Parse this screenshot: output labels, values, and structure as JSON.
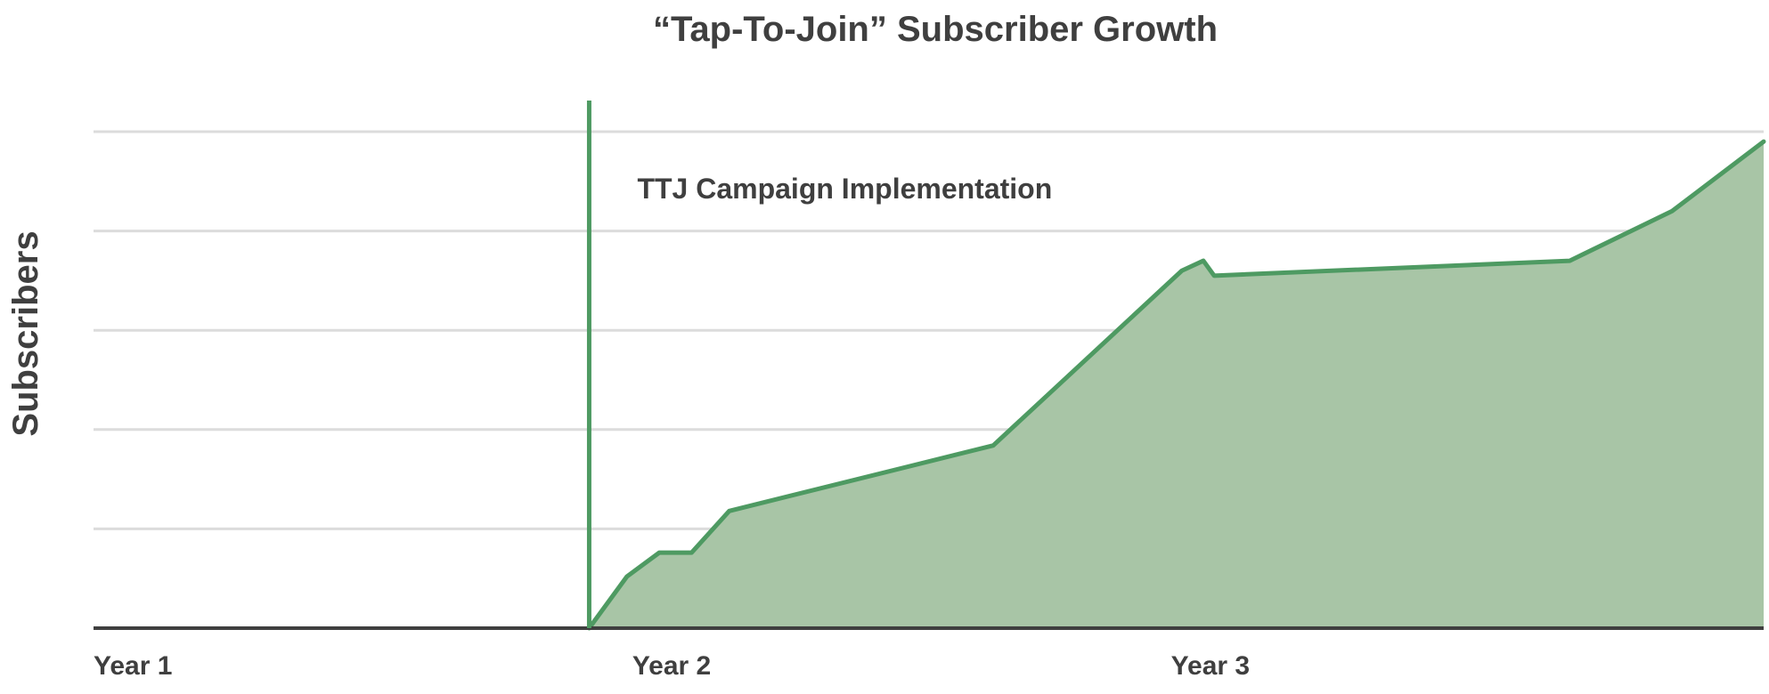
{
  "chart_data": {
    "type": "area",
    "title": "“Tap-To-Join” Subscriber Growth",
    "xlabel": "",
    "ylabel": "Subscribers",
    "x_tick_labels": [
      {
        "label": "Year 1",
        "x": 1.0
      },
      {
        "label": "Year 2",
        "x": 2.0
      },
      {
        "label": "Year 3",
        "x": 3.0
      }
    ],
    "xlim": [
      1.0,
      4.1
    ],
    "ylim": [
      0,
      5
    ],
    "grid": true,
    "annotations": [
      {
        "text": "TTJ Campaign Implementation",
        "x": 1.92
      }
    ],
    "series": [
      {
        "x": [
          1.92,
          1.99,
          2.05,
          2.11,
          2.18,
          2.67,
          3.02,
          3.06,
          3.08,
          3.74,
          3.93,
          4.1
        ],
        "values": [
          0.0,
          0.52,
          0.76,
          0.76,
          1.18,
          1.84,
          3.6,
          3.7,
          3.55,
          3.7,
          4.2,
          4.9
        ]
      }
    ],
    "colors": {
      "line": "#4e9a62",
      "fill": "#a8c5a6",
      "grid": "#dcdcdc",
      "axis": "#3f3f3f",
      "text": "#3f3f3f"
    }
  }
}
